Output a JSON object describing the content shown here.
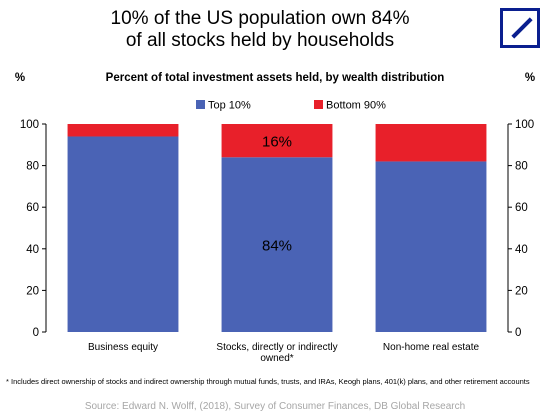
{
  "header": {
    "title_line1": "10% of the US population own 84%",
    "title_line2": "of all stocks held by households",
    "logo_icon": "deutsche-bank-slash-logo"
  },
  "chart_data": {
    "type": "bar",
    "stacked": true,
    "subtitle": "Percent of total investment assets held, by wealth distribution",
    "ylabel_left": "%",
    "ylabel_right": "%",
    "ylim": [
      0,
      100
    ],
    "yticks": [
      0,
      20,
      40,
      60,
      80,
      100
    ],
    "grid": false,
    "legend_position": "top-center",
    "categories": [
      [
        "Business equity"
      ],
      [
        "Stocks, directly or indirectly",
        "owned*"
      ],
      [
        "Non-home real estate"
      ]
    ],
    "series": [
      {
        "name": "Top 10%",
        "color": "#4a63b5",
        "values": [
          94,
          84,
          82
        ]
      },
      {
        "name": "Bottom 90%",
        "color": "#e8202a",
        "values": [
          6,
          16,
          18
        ]
      }
    ],
    "annotations": [
      {
        "text": "16%",
        "category_index": 1,
        "series_index": 1
      },
      {
        "text": "84%",
        "category_index": 1,
        "series_index": 0
      }
    ]
  },
  "footnote": "* Includes direct ownership of stocks and indirect ownership through mutual funds, trusts, and IRAs, Keogh plans, 401(k) plans, and other retirement accounts",
  "source": "Source: Edward N. Wolff, (2018), Survey of Consumer Finances, DB Global Research"
}
